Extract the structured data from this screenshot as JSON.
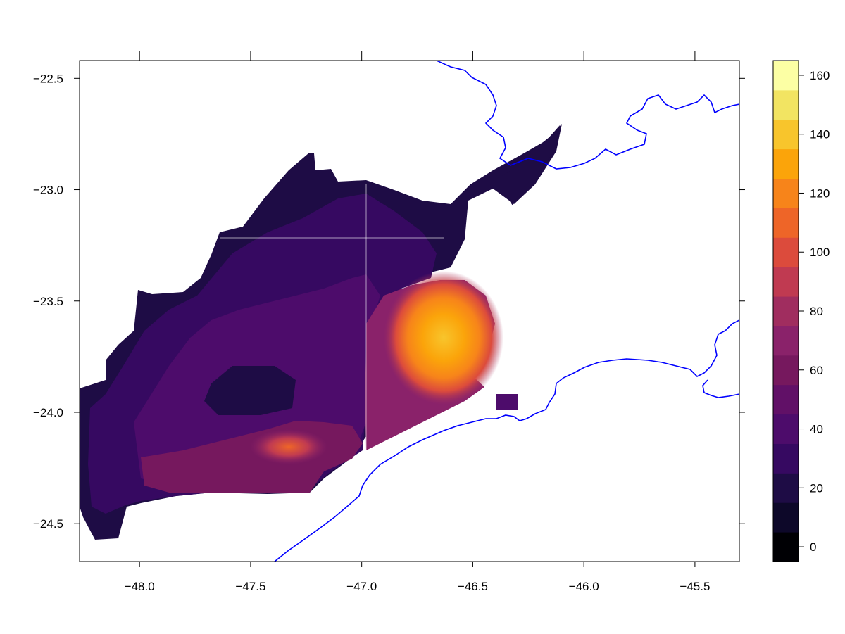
{
  "chart_data": {
    "type": "heatmap",
    "title": "",
    "xlabel": "",
    "ylabel": "",
    "xlim": [
      -48.27,
      -45.3
    ],
    "ylim": [
      -24.67,
      -22.42
    ],
    "x_ticks": [
      -48.0,
      -47.5,
      -47.0,
      -46.5,
      -46.0,
      -45.5
    ],
    "x_tick_labels": [
      "−48.0",
      "−47.5",
      "−47.0",
      "−46.5",
      "−46.0",
      "−45.5"
    ],
    "y_ticks": [
      -22.5,
      -23.0,
      -23.5,
      -24.0,
      -24.5
    ],
    "y_tick_labels": [
      "−22.5",
      "−23.0",
      "−23.5",
      "−24.0",
      "−24.5"
    ],
    "colorbar": {
      "range": [
        -5,
        165
      ],
      "step": 10,
      "tick_values": [
        0,
        20,
        40,
        60,
        80,
        100,
        120,
        140,
        160
      ],
      "tick_labels": [
        "0",
        "20",
        "40",
        "60",
        "80",
        "100",
        "120",
        "140",
        "160"
      ],
      "colors": [
        "#000004",
        "#0d0829",
        "#1e0c45",
        "#360961",
        "#4d0c6b",
        "#611067",
        "#76185e",
        "#8a226a",
        "#a02d5f",
        "#c03a51",
        "#dc4b3c",
        "#ee6528",
        "#f7841a",
        "#fba40a",
        "#f8c52c",
        "#f2e462",
        "#fcffa4"
      ]
    },
    "coastline_color": "#0000ff",
    "grid": false
  }
}
